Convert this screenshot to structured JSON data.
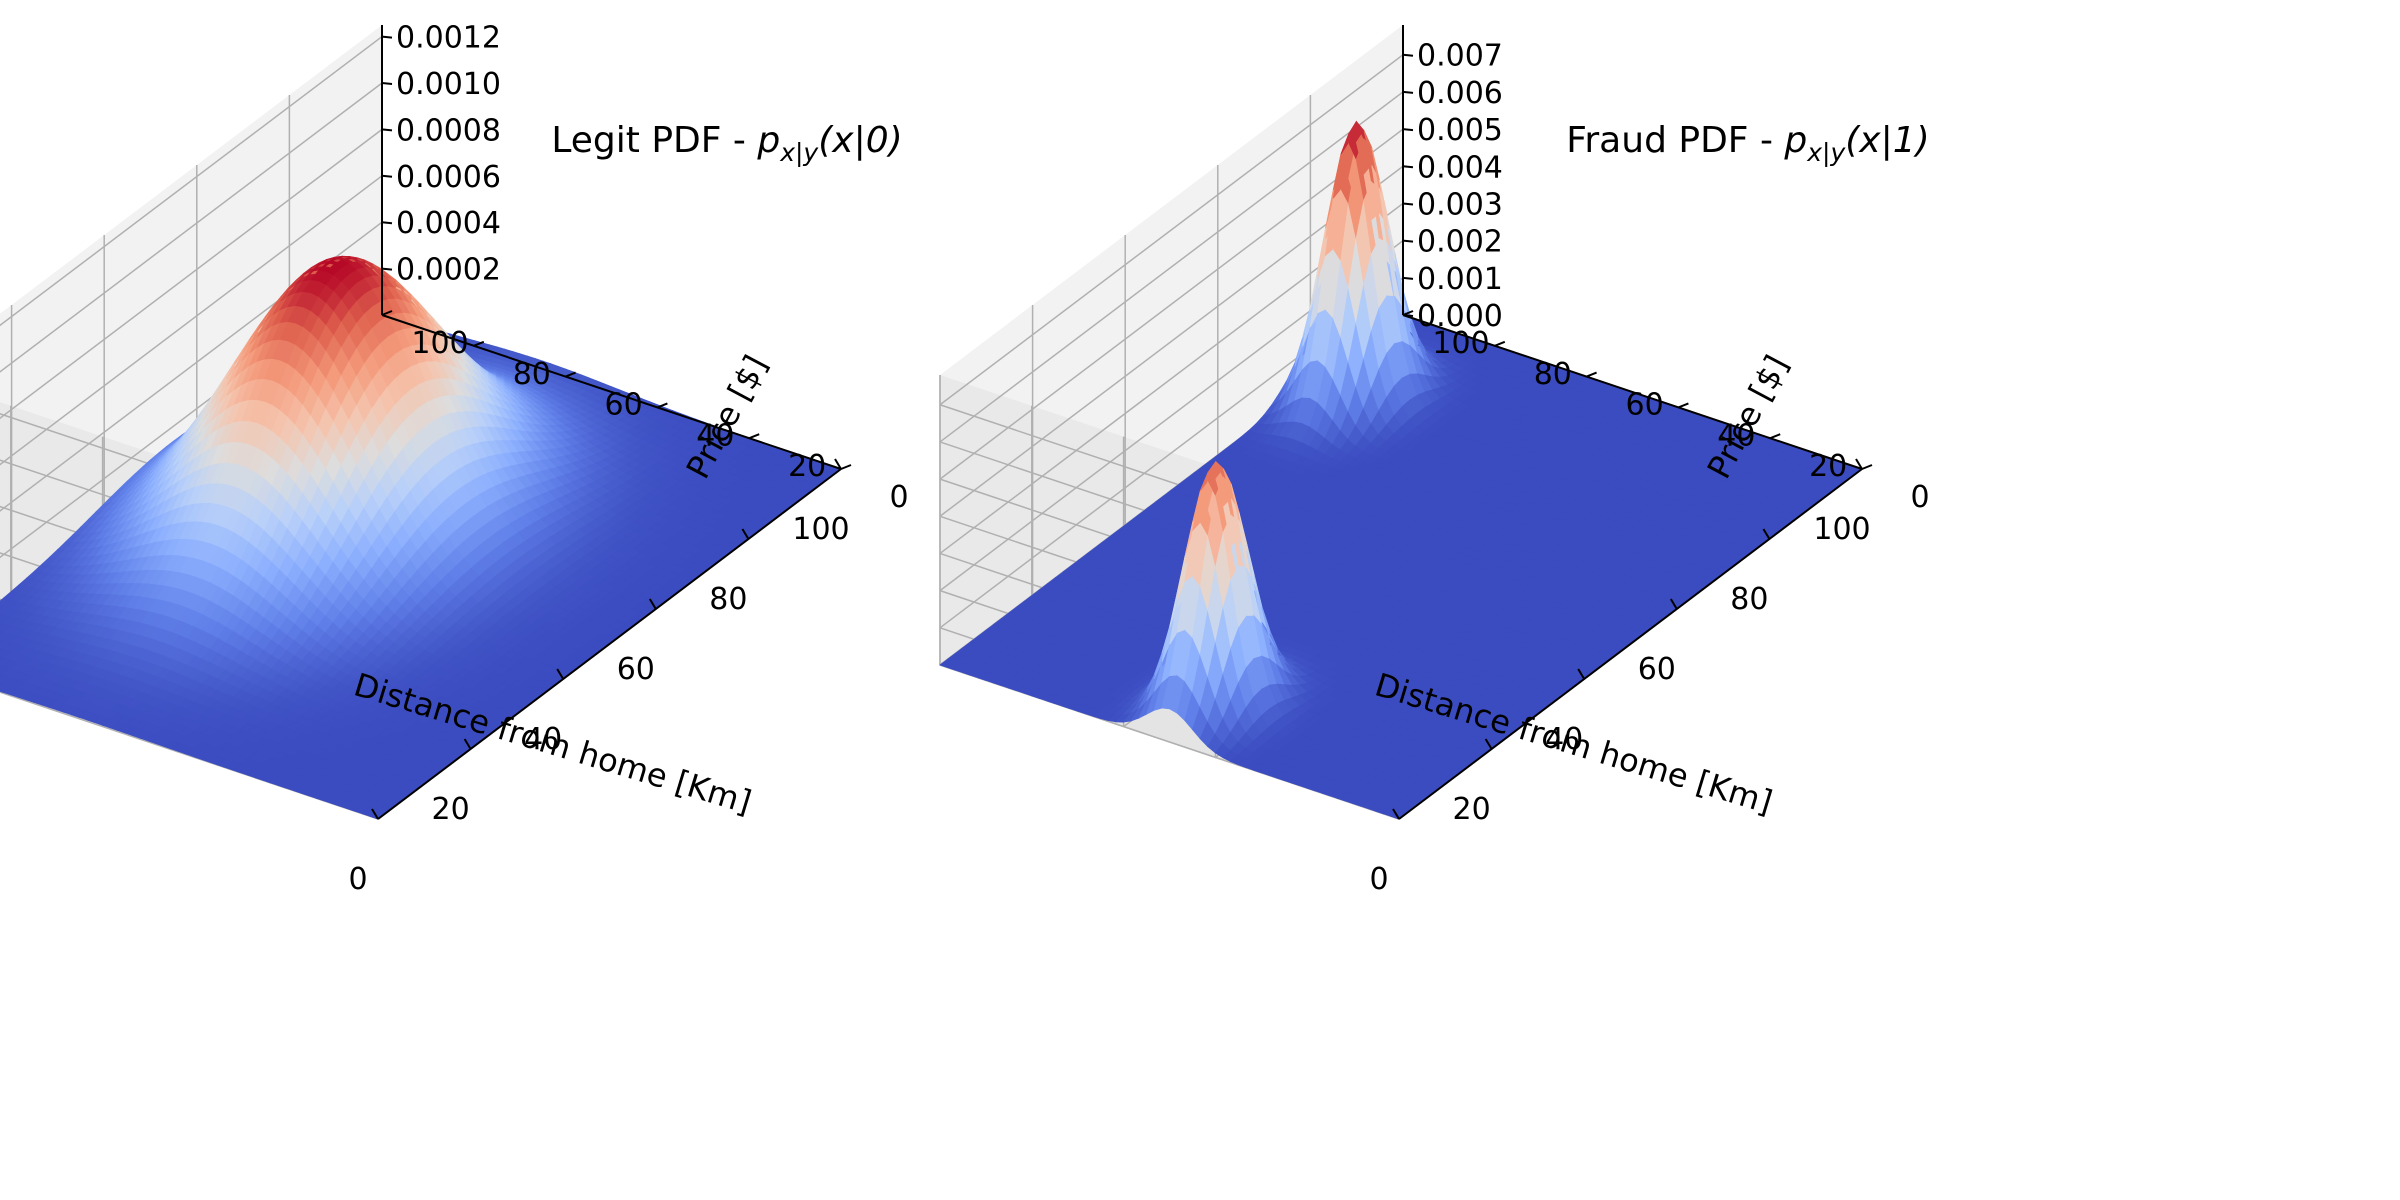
{
  "figure": {
    "background": "#ffffff",
    "pane_color": "#f2f2f2",
    "grid_color": "#b0b0b0"
  },
  "chart_data": [
    {
      "type": "surface3d",
      "title_text": "Legit PDF - ",
      "title_math": {
        "base": "p",
        "subscript": "x|y",
        "argument": "(x|0)"
      },
      "xlabel": "Distance from home [Km]",
      "ylabel": "Price [$]",
      "zlabel": "",
      "x_range": [
        0,
        100
      ],
      "y_range": [
        0,
        100
      ],
      "x_ticks": [
        "0",
        "20",
        "40",
        "60",
        "80",
        "100"
      ],
      "y_ticks": [
        "0",
        "20",
        "40",
        "60",
        "80",
        "100"
      ],
      "z_ticks": [
        "0.0002",
        "0.0004",
        "0.0006",
        "0.0008",
        "0.0010",
        "0.0012"
      ],
      "z_range": [
        0,
        0.00125
      ],
      "z_max": 0.00113,
      "colormap": "coolwarm",
      "grid": true,
      "peaks": [
        {
          "x": 55,
          "y": 65,
          "sigma_x": 17,
          "sigma_y": 17,
          "amplitude": 0.00113
        }
      ]
    },
    {
      "type": "surface3d",
      "title_text": "Fraud PDF - ",
      "title_math": {
        "base": "p",
        "subscript": "x|y",
        "argument": "(x|1)"
      },
      "xlabel": "Distance from home [Km]",
      "ylabel": "Price [$]",
      "zlabel": "",
      "x_range": [
        0,
        100
      ],
      "y_range": [
        0,
        100
      ],
      "x_ticks": [
        "0",
        "20",
        "40",
        "60",
        "80",
        "100"
      ],
      "y_ticks": [
        "0",
        "20",
        "40",
        "60",
        "80",
        "100"
      ],
      "z_ticks": [
        "0.000",
        "0.001",
        "0.002",
        "0.003",
        "0.004",
        "0.005",
        "0.006",
        "0.007"
      ],
      "z_range": [
        0,
        0.0078
      ],
      "z_max": 0.0075,
      "colormap": "coolwarm",
      "grid": true,
      "peaks": [
        {
          "x": 10,
          "y": 50,
          "sigma_x": 5,
          "sigma_y": 5,
          "amplitude": 0.0066
        },
        {
          "x": 80,
          "y": 90,
          "sigma_x": 5,
          "sigma_y": 5,
          "amplitude": 0.0075
        }
      ]
    }
  ]
}
